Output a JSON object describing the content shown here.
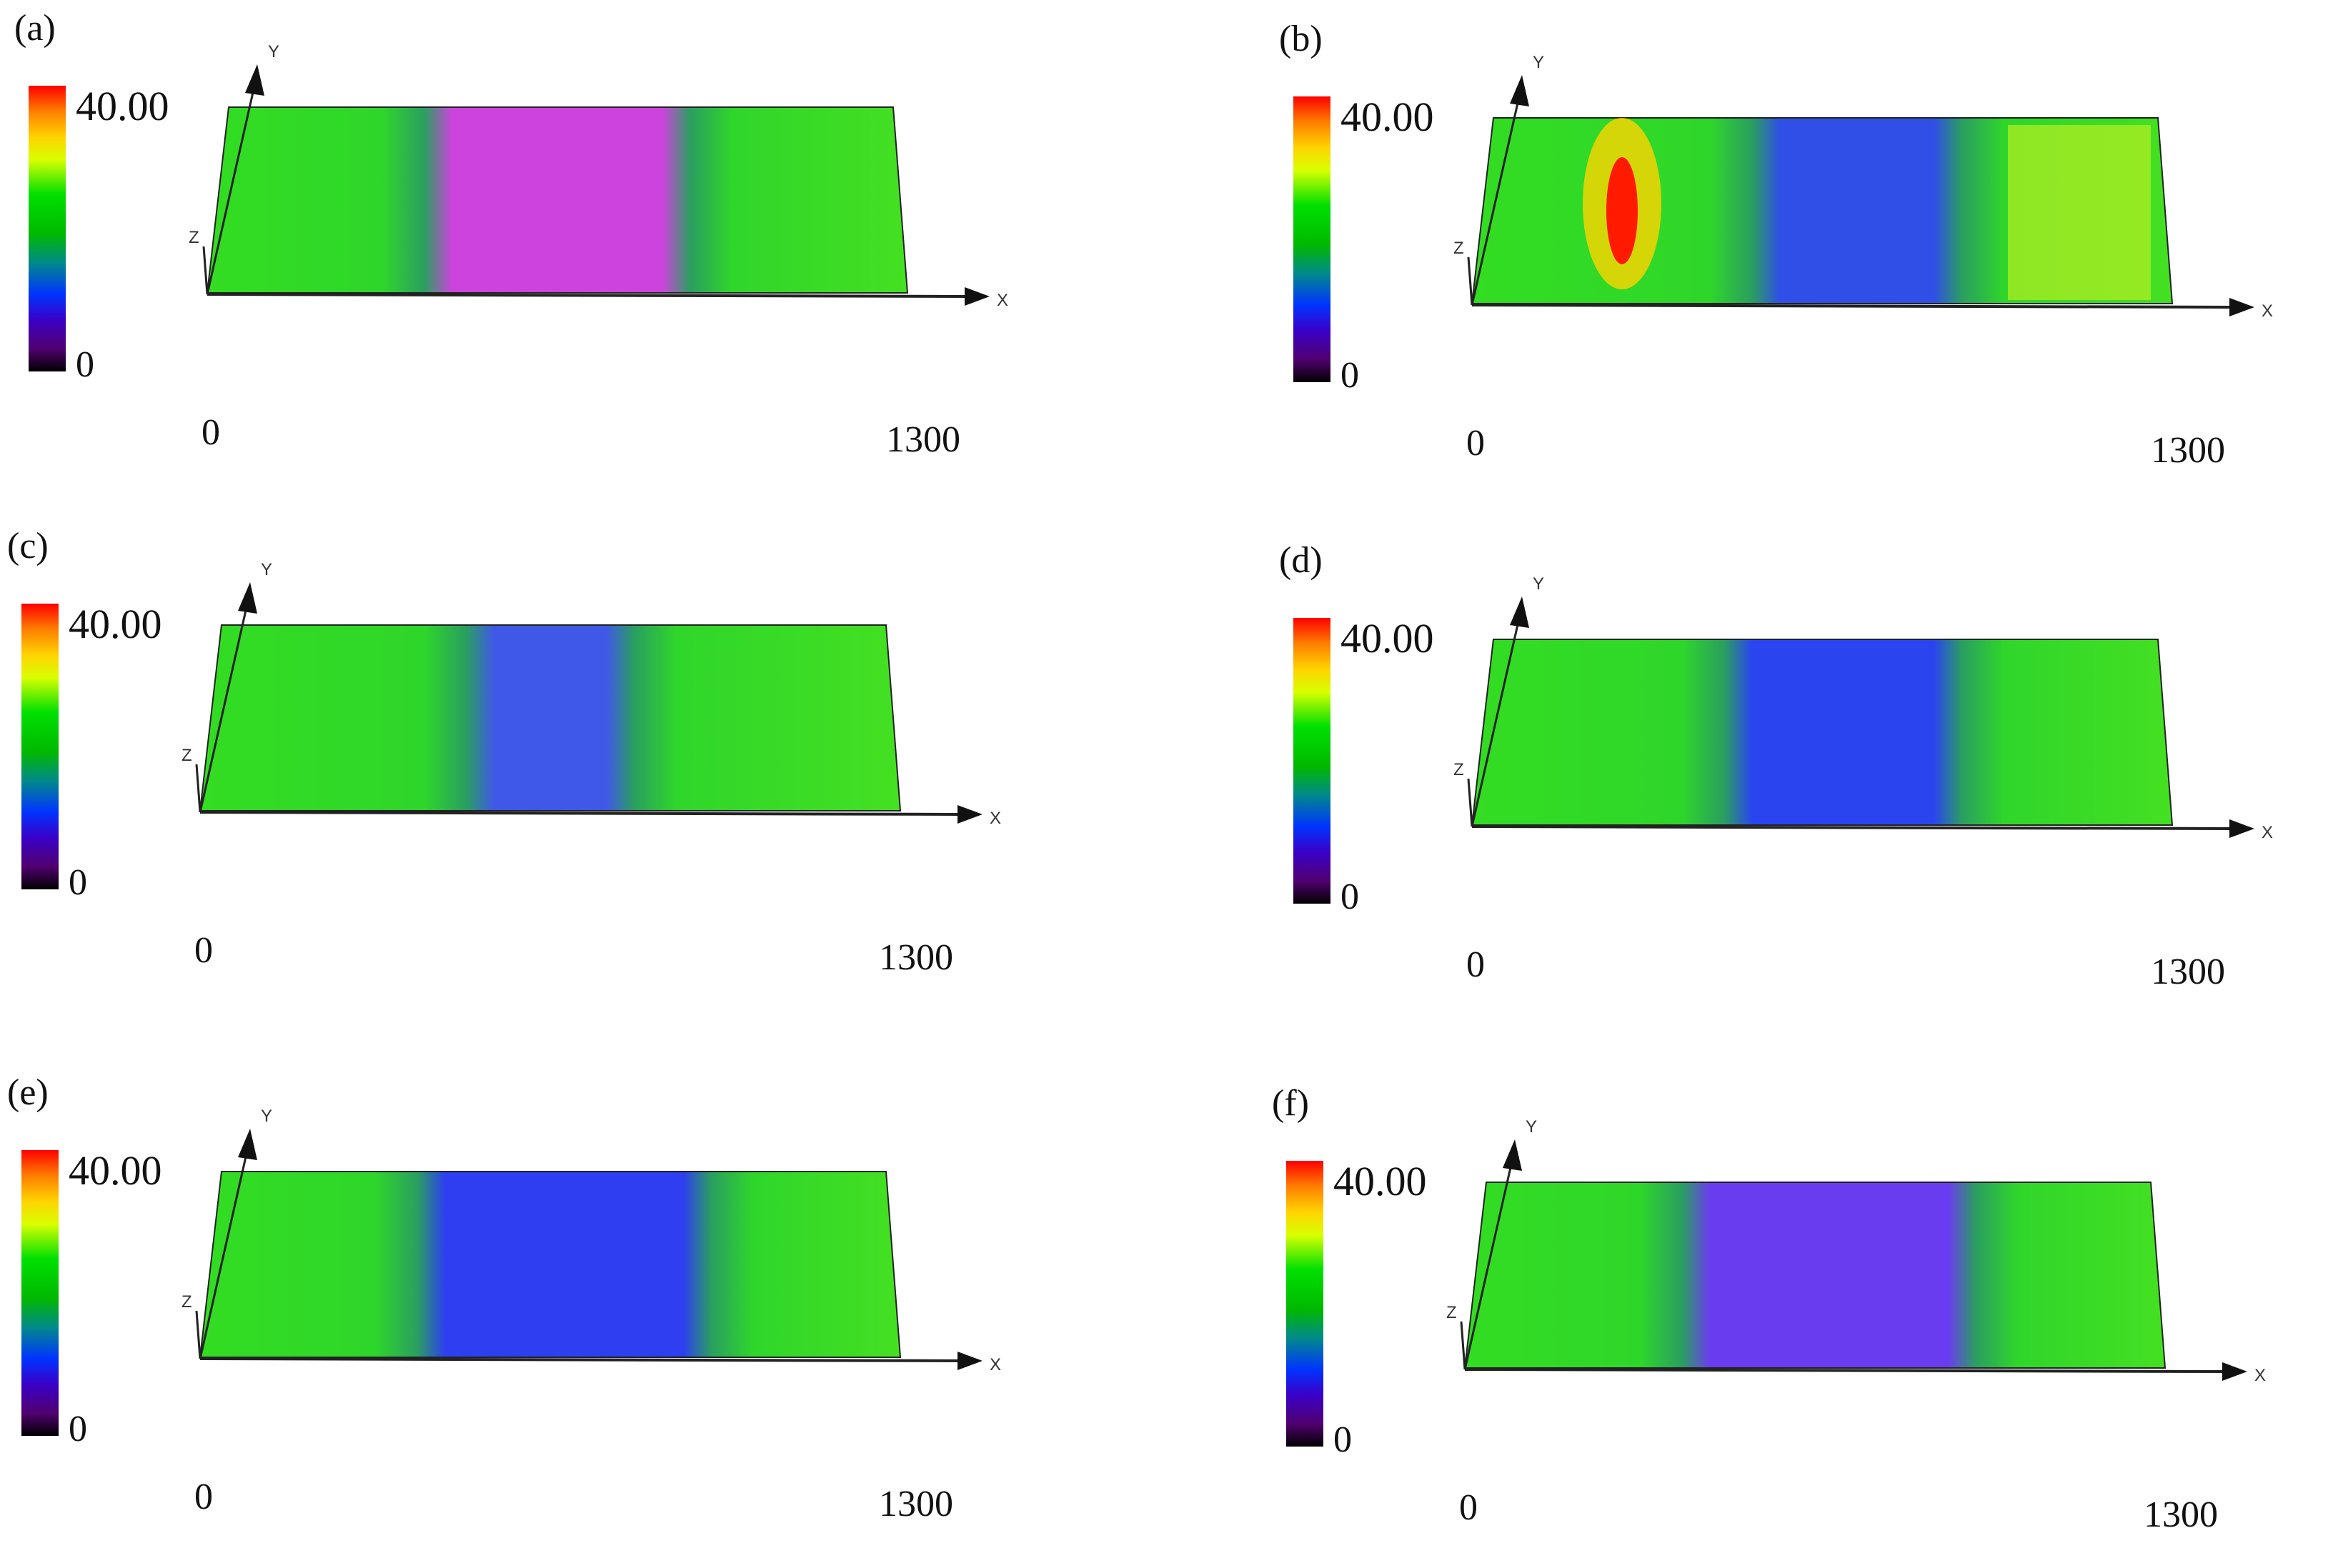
{
  "figure": {
    "panels": [
      {
        "label": "(a)",
        "colorbar": {
          "max": "40.00",
          "min": "0"
        },
        "x_axis": {
          "start": "0",
          "end": "1300",
          "label": "X"
        },
        "y_axis_label": "Y",
        "z_axis_label": "Z",
        "band_color": "#cc44dd",
        "band_center": 0.5,
        "band_width": 0.38
      },
      {
        "label": "(b)",
        "colorbar": {
          "max": "40.00",
          "min": "0"
        },
        "x_axis": {
          "start": "0",
          "end": "1300",
          "label": "X"
        },
        "y_axis_label": "Y",
        "z_axis_label": "Z",
        "band_color": "#2f4fe6",
        "band_center": 0.55,
        "band_width": 0.3,
        "hot_streak": true
      },
      {
        "label": "(c)",
        "colorbar": {
          "max": "40.00",
          "min": "0"
        },
        "x_axis": {
          "start": "0",
          "end": "1300",
          "label": "X"
        },
        "y_axis_label": "Y",
        "z_axis_label": "Z",
        "band_color": "#3f58e8",
        "band_center": 0.5,
        "band_width": 0.24
      },
      {
        "label": "(d)",
        "colorbar": {
          "max": "40.00",
          "min": "0"
        },
        "x_axis": {
          "start": "0",
          "end": "1300",
          "label": "X"
        },
        "y_axis_label": "Y",
        "z_axis_label": "Z",
        "band_color": "#2a45f0",
        "band_center": 0.53,
        "band_width": 0.34
      },
      {
        "label": "(e)",
        "colorbar": {
          "max": "40.00",
          "min": "0"
        },
        "x_axis": {
          "start": "0",
          "end": "1300",
          "label": "X"
        },
        "y_axis_label": "Y",
        "z_axis_label": "Z",
        "band_color": "#2d3ff0",
        "band_center": 0.52,
        "band_width": 0.42
      },
      {
        "label": "(f)",
        "colorbar": {
          "max": "40.00",
          "min": "0"
        },
        "x_axis": {
          "start": "0",
          "end": "1300",
          "label": "X"
        },
        "y_axis_label": "Y",
        "z_axis_label": "Z",
        "band_color": "#6a3cf0",
        "band_center": 0.52,
        "band_width": 0.42
      }
    ]
  }
}
